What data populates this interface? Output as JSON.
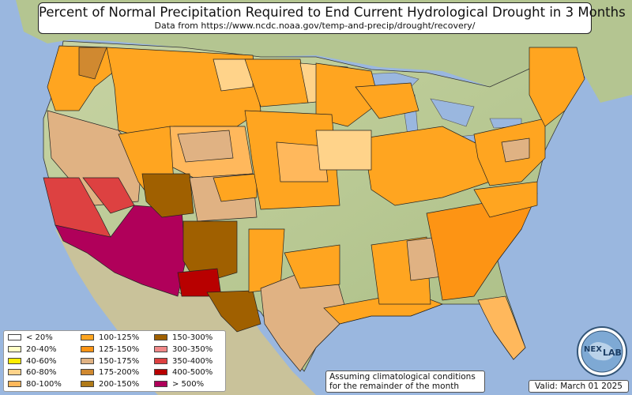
{
  "title": {
    "main": "Percent of Normal Precipitation Required to End Current Hydrological Drought in 3 Months",
    "source": "Data from https://www.ncdc.noaa.gov/temp-and-precip/drought/recovery/"
  },
  "legend": [
    {
      "label": "< 20%",
      "color": "#ffffff"
    },
    {
      "label": "20-40%",
      "color": "#ffffc6"
    },
    {
      "label": "40-60%",
      "color": "#ffee00"
    },
    {
      "label": "60-80%",
      "color": "#ffd38a"
    },
    {
      "label": "80-100%",
      "color": "#ffb85c"
    },
    {
      "label": "100-125%",
      "color": "#ffa520"
    },
    {
      "label": "125-150%",
      "color": "#fd9414"
    },
    {
      "label": "150-175%",
      "color": "#e0b283"
    },
    {
      "label": "175-200%",
      "color": "#d08930"
    },
    {
      "label": "200-150%",
      "color": "#b07a18"
    },
    {
      "label": "150-300%",
      "color": "#a06000"
    },
    {
      "label": "300-350%",
      "color": "#f08888"
    },
    {
      "label": "350-400%",
      "color": "#dd4141"
    },
    {
      "label": "400-500%",
      "color": "#b80000"
    },
    {
      "label": "> 500%",
      "color": "#b0005a"
    }
  ],
  "note": {
    "line1": "Assuming climatological conditions",
    "line2": "for the remainder of the month"
  },
  "valid": "Valid: March 01 2025",
  "logo": {
    "icon": "nex-lab-globe-logo",
    "text_top": "NEX",
    "text_bottom": "LAB"
  },
  "colors": {
    "ocean": "#9ab7df",
    "land": "#b7c99a",
    "border": "#111111"
  }
}
